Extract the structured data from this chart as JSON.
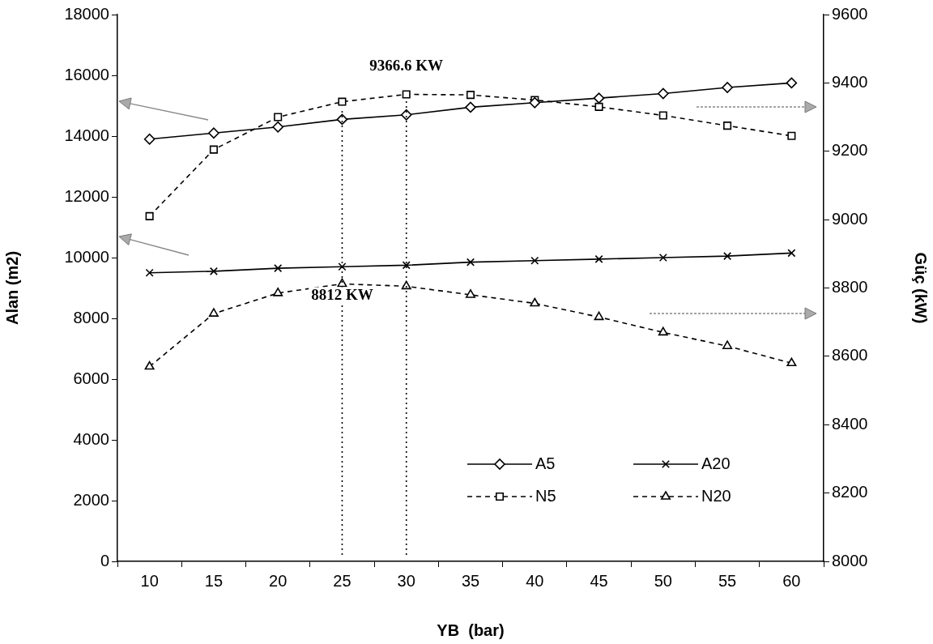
{
  "chart_data": {
    "type": "line",
    "categories": [
      "10",
      "15",
      "20",
      "25",
      "30",
      "35",
      "40",
      "45",
      "50",
      "55",
      "60"
    ],
    "series": [
      {
        "name": "A5",
        "color": "#000000",
        "marker": "diamond",
        "line_style": "solid",
        "values": [
          13900,
          14100,
          14300,
          14550,
          14700,
          14950,
          15100,
          15250,
          15400,
          15600,
          15750
        ]
      },
      {
        "name": "A20",
        "color": "#000000",
        "marker": "cross",
        "line_style": "solid",
        "values": [
          9500,
          9550,
          9650,
          9700,
          9750,
          9850,
          9900,
          9950,
          10000,
          10050,
          10150
        ]
      },
      {
        "name": "N5",
        "color": "#000000",
        "marker": "square",
        "line_style": "dashed",
        "axis": "y2",
        "values": [
          9010,
          9205,
          9300,
          9345,
          9366.6,
          9365,
          9350,
          9330,
          9305,
          9275,
          9245
        ]
      },
      {
        "name": "N20",
        "color": "#000000",
        "marker": "triangle",
        "line_style": "dashed",
        "axis": "y2",
        "values": [
          8570,
          8725,
          8785,
          8812,
          8805,
          8780,
          8755,
          8715,
          8670,
          8630,
          8580
        ]
      }
    ],
    "xlabel": "YB  (bar)",
    "ylabel": "Alan (m2)",
    "y2label": "Güç (kW)",
    "ylim": [
      0,
      18000
    ],
    "yticks": [
      0,
      2000,
      4000,
      6000,
      8000,
      10000,
      12000,
      14000,
      16000,
      18000
    ],
    "y2lim": [
      8000,
      9600
    ],
    "y2ticks": [
      8000,
      8200,
      8400,
      8600,
      8800,
      9000,
      9200,
      9400,
      9600
    ],
    "ref_lines": [
      {
        "axis": "x",
        "value": "30",
        "label": "9366.6 KW",
        "line_style": "dotted"
      },
      {
        "axis": "x",
        "value": "25",
        "label": "8812 KW",
        "line_style": "dotted"
      }
    ],
    "grid": false,
    "legend": "bottom right"
  }
}
